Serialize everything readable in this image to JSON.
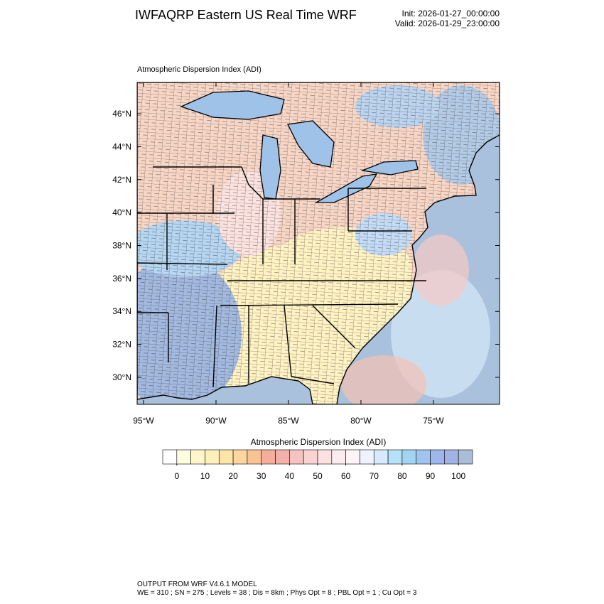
{
  "header": {
    "title": "IWFAQRP Eastern US Real Time WRF",
    "init": "Init: 2026-01-27_00:00:00",
    "valid": "Valid: 2026-01-29_23:00:00"
  },
  "map": {
    "title": "Atmospheric Dispersion Index   (ADI)",
    "lon_lim": [
      -95.44,
      -70.44
    ],
    "lat_lim": [
      28.36,
      47.9
    ],
    "lon_ticks": [
      {
        "value": -95,
        "label": "95°W"
      },
      {
        "value": -90,
        "label": "90°W"
      },
      {
        "value": -85,
        "label": "85°W"
      },
      {
        "value": -80,
        "label": "80°W"
      },
      {
        "value": -75,
        "label": "75°W"
      }
    ],
    "lat_ticks": [
      {
        "value": 30,
        "label": "30°N"
      },
      {
        "value": 32,
        "label": "32°N"
      },
      {
        "value": 34,
        "label": "34°N"
      },
      {
        "value": 36,
        "label": "36°N"
      },
      {
        "value": 38,
        "label": "38°N"
      },
      {
        "value": 40,
        "label": "40°N"
      },
      {
        "value": 42,
        "label": "42°N"
      },
      {
        "value": 44,
        "label": "44°N"
      },
      {
        "value": 46,
        "label": "46°N"
      }
    ]
  },
  "colorbar": {
    "title": "Atmospheric Dispersion Index  (ADI)",
    "lim": [
      -5,
      105
    ],
    "colors": [
      "#ffffff",
      "#fffde0",
      "#fff6cc",
      "#ffefbb",
      "#fde5a8",
      "#fcd6a0",
      "#f9c394",
      "#f5ae9c",
      "#f3b0a8",
      "#f6c3c0",
      "#f9d3d1",
      "#fbe1e1",
      "#fcebef",
      "#fdf4f7",
      "#eef3ff",
      "#d6ebfd",
      "#b6e2f8",
      "#a3d4f3",
      "#9ec4ef",
      "#9db6ec",
      "#a2b2e3",
      "#a9bdd6"
    ],
    "ticks": [
      0,
      10,
      20,
      30,
      40,
      50,
      60,
      70,
      80,
      90,
      100
    ]
  },
  "footer": [
    "OUTPUT FROM WRF V4.6.1 MODEL",
    "WE = 310 ; SN = 275 ; Levels = 38 ; Dis = 8km ; Phys Opt = 8 ; PBL Opt = 1 ; Cu Opt = 3"
  ]
}
